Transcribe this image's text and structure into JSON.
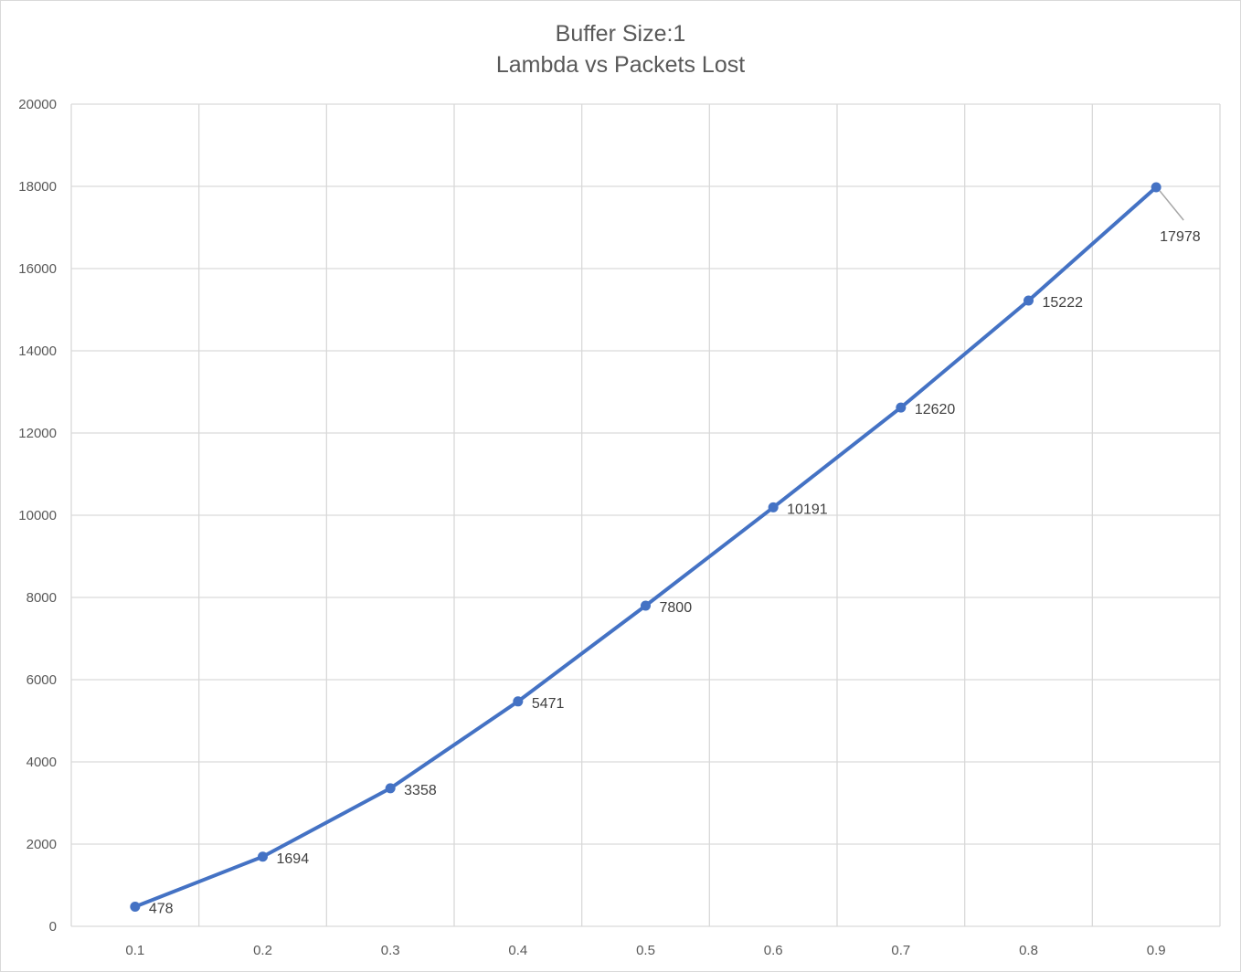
{
  "chart_data": {
    "type": "line",
    "title_lines": [
      "Buffer Size:1",
      "Lambda vs Packets Lost"
    ],
    "xlabel": "",
    "ylabel": "",
    "categories": [
      "0.1",
      "0.2",
      "0.3",
      "0.4",
      "0.5",
      "0.6",
      "0.7",
      "0.8",
      "0.9"
    ],
    "series": [
      {
        "values": [
          478,
          1694,
          3358,
          5471,
          7800,
          10191,
          12620,
          15222,
          17978
        ],
        "color": "#4472C4",
        "data_labels": [
          "478",
          "1694",
          "3358",
          "5471",
          "7800",
          "10191",
          "12620",
          "15222",
          "17978"
        ]
      }
    ],
    "ylim": [
      0,
      20000
    ],
    "y_ticks": [
      "0",
      "2000",
      "4000",
      "6000",
      "8000",
      "10000",
      "12000",
      "14000",
      "16000",
      "18000",
      "20000"
    ],
    "grid": true,
    "legend": "none",
    "colors": {
      "line": "#4472C4",
      "grid": "#d9d9d9",
      "text": "#595959",
      "label_text": "#404040",
      "leader_line": "#a6a6a6"
    }
  }
}
